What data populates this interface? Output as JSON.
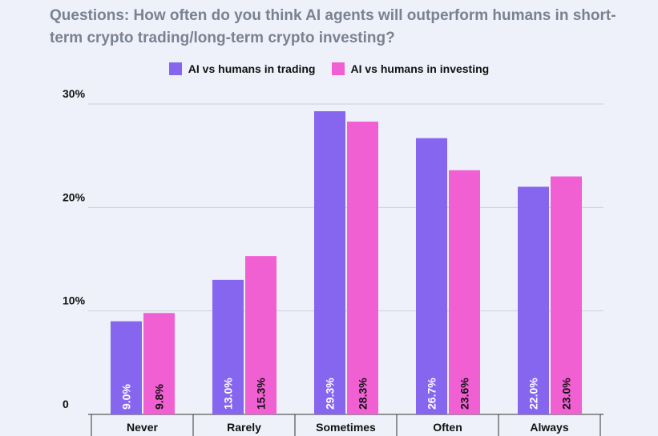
{
  "title": "Questions: How often do you think AI agents will outperform humans in short-term crypto trading/long-term crypto investing?",
  "legend": {
    "trading": "AI vs humans in trading",
    "investing": "AI vs humans in investing"
  },
  "colors": {
    "trading": "#8665ef",
    "investing": "#f060d3",
    "grid": "#c9cfdd"
  },
  "chart_data": {
    "type": "bar",
    "title": "Questions: How often do you think AI agents will outperform humans in short-term crypto trading/long-term crypto investing?",
    "categories": [
      "Never",
      "Rarely",
      "Sometimes",
      "Often",
      "Always"
    ],
    "series": [
      {
        "name": "AI vs humans in trading",
        "values": [
          9.0,
          13.0,
          29.3,
          26.7,
          22.0
        ],
        "labels": [
          "9.0%",
          "13.0%",
          "29.3%",
          "26.7%",
          "22.0%"
        ]
      },
      {
        "name": "AI vs humans in investing",
        "values": [
          9.8,
          15.3,
          28.3,
          23.6,
          23.0
        ],
        "labels": [
          "9.8%",
          "15.3%",
          "28.3%",
          "23.6%",
          "23.0%"
        ]
      }
    ],
    "yticks": [
      "0",
      "10%",
      "20%",
      "30%"
    ],
    "ytick_values": [
      0,
      10,
      20,
      30
    ],
    "ylim": [
      0,
      30
    ],
    "grid": true,
    "legend_position": "top-center"
  }
}
